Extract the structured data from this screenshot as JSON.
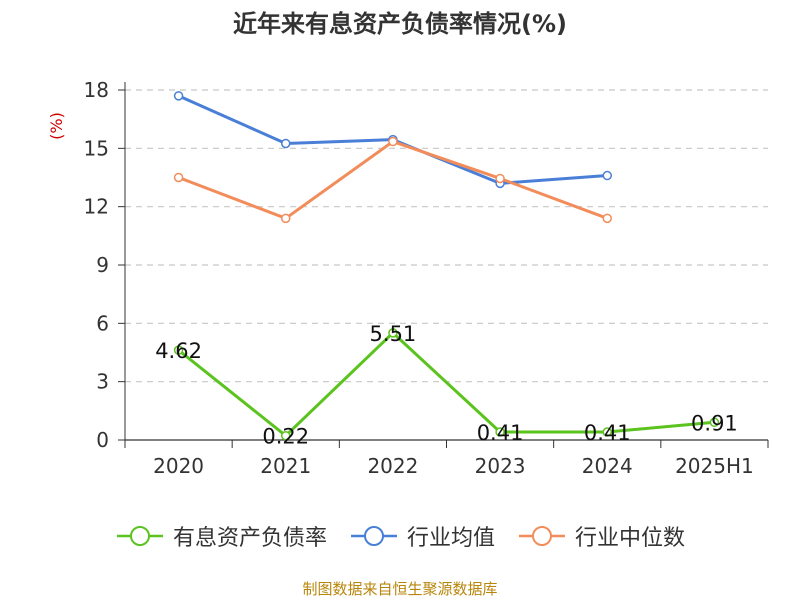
{
  "title": "近年来有息资产负债率情况(%)",
  "footer": "制图数据来自恒生聚源数据库",
  "chart_data": {
    "type": "line",
    "title": "近年来有息资产负债率情况(%)",
    "ylabel": "(%)",
    "categories": [
      "2020",
      "2021",
      "2022",
      "2023",
      "2024",
      "2025H1"
    ],
    "ylim": [
      0,
      18
    ],
    "yticks": [
      0,
      3,
      6,
      9,
      12,
      15,
      18
    ],
    "grid": true,
    "legend_position": "bottom",
    "series": [
      {
        "name": "有息资产负债率",
        "color": "#5bc31e",
        "values": [
          4.62,
          0.22,
          5.51,
          0.41,
          0.41,
          0.91
        ],
        "labels": [
          "4.62",
          "0.22",
          "5.51",
          "0.41",
          "0.41",
          "0.91"
        ]
      },
      {
        "name": "行业均值",
        "color": "#4a7fd8",
        "values": [
          17.7,
          15.25,
          15.45,
          13.2,
          13.6,
          null
        ]
      },
      {
        "name": "行业中位数",
        "color": "#f28d5b",
        "values": [
          13.5,
          11.4,
          15.35,
          13.45,
          11.4,
          null
        ]
      }
    ]
  }
}
